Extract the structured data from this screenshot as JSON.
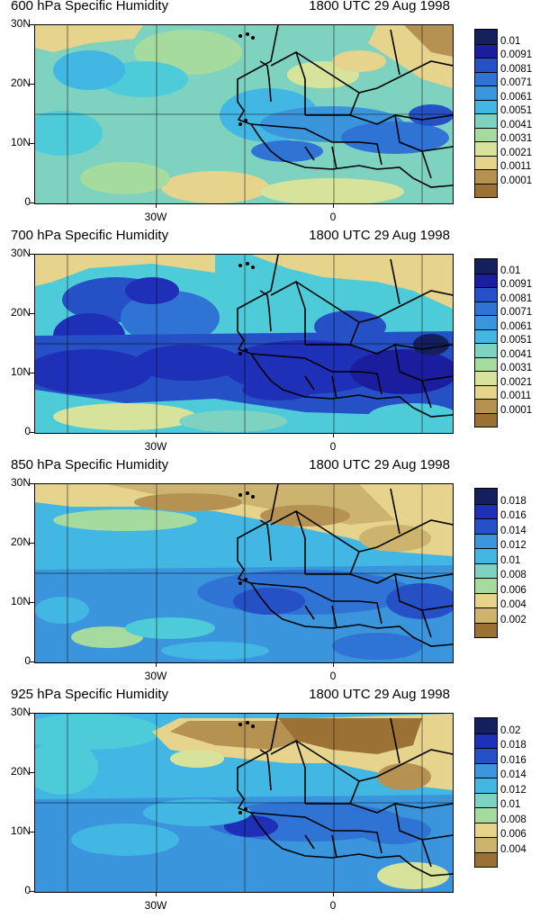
{
  "colors": [
    "#9c7135",
    "#b59152",
    "#ccb36e",
    "#e6d38c",
    "#d7e39a",
    "#a6dba0",
    "#7dd3c0",
    "#4ecbd8",
    "#42b7e4",
    "#3a95dc",
    "#2f74d4",
    "#2650c6",
    "#1e2fb8",
    "#1a1e9e",
    "#14205e"
  ],
  "panels": [
    {
      "title_left": "600 hPa Specific Humidity",
      "title_right": "1800 UTC 29 Aug 1998",
      "y_labels": [
        "30N",
        "20N",
        "10N",
        "0"
      ],
      "x_labels": [
        "30W",
        "0"
      ],
      "colorbar_labels": [
        "0.01",
        "0.0091",
        "0.0081",
        "0.0071",
        "0.0061",
        "0.0051",
        "0.0041",
        "0.0031",
        "0.0021",
        "0.0011",
        "0.0001"
      ],
      "pattern": "p600"
    },
    {
      "title_left": "700 hPa Specific Humidity",
      "title_right": "1800 UTC 29 Aug 1998",
      "y_labels": [
        "30N",
        "20N",
        "10N",
        "0"
      ],
      "x_labels": [
        "30W",
        "0"
      ],
      "colorbar_labels": [
        "0.01",
        "0.0091",
        "0.0081",
        "0.0071",
        "0.0061",
        "0.0051",
        "0.0041",
        "0.0031",
        "0.0021",
        "0.0011",
        "0.0001"
      ],
      "pattern": "p700"
    },
    {
      "title_left": "850 hPa Specific Humidity",
      "title_right": "1800 UTC 29 Aug 1998",
      "y_labels": [
        "30N",
        "20N",
        "10N",
        "0"
      ],
      "x_labels": [
        "30W",
        "0"
      ],
      "colorbar_labels": [
        "0.018",
        "0.016",
        "0.014",
        "0.012",
        "0.01",
        "0.008",
        "0.006",
        "0.004",
        "0.002"
      ],
      "pattern": "p850"
    },
    {
      "title_left": "925 hPa Specific Humidity",
      "title_right": "1800 UTC 29 Aug 1998",
      "y_labels": [
        "30N",
        "20N",
        "10N",
        "0"
      ],
      "x_labels": [
        "30W",
        "0"
      ],
      "colorbar_labels": [
        "0.02",
        "0.018",
        "0.016",
        "0.014",
        "0.012",
        "0.01",
        "0.008",
        "0.006",
        "0.004"
      ],
      "pattern": "p925"
    }
  ]
}
